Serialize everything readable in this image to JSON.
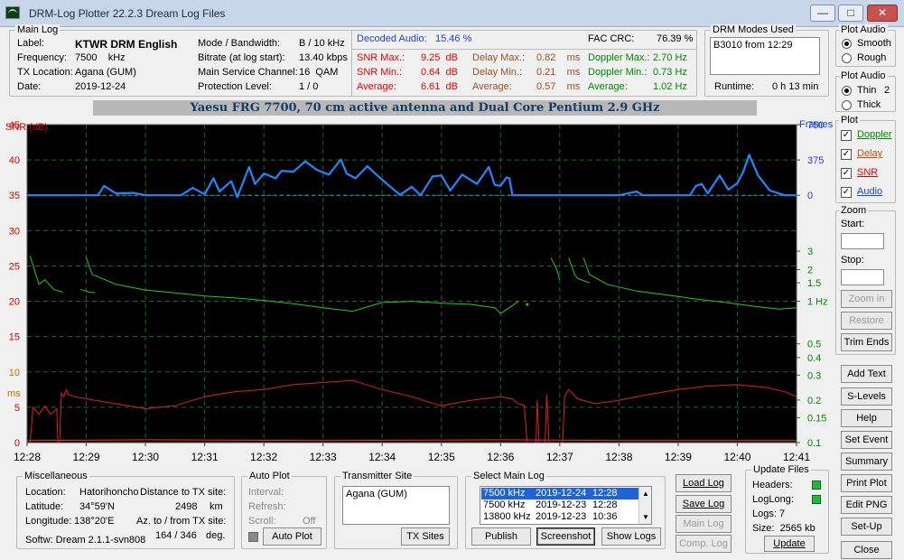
{
  "window": {
    "title": "DRM-Log Plotter 22.2.3   Dream Log Files",
    "min": "—",
    "max": "□",
    "close": "✕"
  },
  "main_log": {
    "title": "Main Log",
    "label_k": "Label:",
    "label_v": "KTWR DRM English",
    "freq_k": "Frequency:",
    "freq_v": "7500    kHz",
    "txloc_k": "TX Location:",
    "txloc_v": "Agana (GUM)",
    "date_k": "Date:",
    "date_v": "2019-12-24",
    "mode_k": "Mode / Bandwidth:",
    "mode_v": "B / 10 kHz",
    "bitrate_k": "Bitrate (at log start):",
    "bitrate_v": "13.40 kbps",
    "msc_k": "Main Service Channel:",
    "msc_v": "16  QAM",
    "prot_k": "Protection Level:",
    "prot_v": "1 / 0",
    "decoded_k": "Decoded Audio:",
    "decoded_v": "15.46 %",
    "fac_k": "FAC  CRC:",
    "fac_v": "76.39 %",
    "snrmax_k": "SNR Max.:",
    "snrmax_v": "9.25  dB",
    "snrmin_k": "SNR Min.:",
    "snrmin_v": "0.64  dB",
    "snravg_k": "Average:",
    "snravg_v": "6.61  dB",
    "dmax_k": "Delay Max.:",
    "dmax_v": "0.82    ms",
    "dmin_k": "Delay Min.:",
    "dmin_v": "0.21    ms",
    "davg_k": "Average:",
    "davg_v": "0.57    ms",
    "dopmax_k": "Doppler Max.:",
    "dopmax_v": "2.70 Hz",
    "dopmin_k": "Doppler Min.:",
    "dopmin_v": "0.73 Hz",
    "dopavg_k": "Average:",
    "dopavg_v": "1.02 Hz"
  },
  "drm_modes": {
    "title": "DRM Modes Used",
    "entry": "B3010 from 12:29",
    "runtime_k": "Runtime:",
    "runtime_v": "0 h 13 min"
  },
  "plot_audio1": {
    "title": "Plot Audio",
    "smooth": "Smooth",
    "rough": "Rough",
    "selected": "Smooth"
  },
  "plot_audio2": {
    "title": "Plot Audio",
    "thin": "Thin",
    "thick": "Thick",
    "value": "2",
    "selected": "Thin"
  },
  "plot_opts": {
    "title": "Plot",
    "doppler": "Doppler",
    "delay": "Delay",
    "snr": "SNR",
    "audio": "Audio",
    "check": "✓"
  },
  "zoom": {
    "title": "Zoom",
    "start": "Start:",
    "stop": "Stop:",
    "zoom_in": "Zoom in",
    "restore": "Restore",
    "trim": "Trim Ends"
  },
  "side_buttons": {
    "add_text": "Add Text",
    "s_levels": "S-Levels",
    "help": "Help",
    "set_event": "Set Event",
    "summary": "Summary",
    "print_plot": "Print Plot",
    "edit_png": "Edit PNG",
    "setup": "Set-Up",
    "close": "Close"
  },
  "chart_title": "Yaesu FRG 7700, 70 cm active antenna and Dual Core Pentium 2.9 GHz",
  "misc": {
    "title": "Miscellaneous",
    "loc_k": "Location:",
    "loc_v": "Hatorihoncho",
    "lat_k": "Latitude:",
    "lat_v": "34°59'N",
    "lon_k": "Longitude:",
    "lon_v": "138°20'E",
    "dist_k": "Distance to TX site:",
    "dist_v": "2498",
    "dist_u": "km",
    "az_k": "Az. to / from TX site:",
    "az_v": "164 / 346",
    "az_u": "deg.",
    "softw": "Softw: Dream 2.1.1-svn808"
  },
  "auto_plot": {
    "title": "Auto Plot",
    "interval": "Interval:",
    "refresh": "Refresh:",
    "scroll": "Scroll:",
    "scroll_v": "Off",
    "button": "Auto Plot"
  },
  "tx_site": {
    "title": "Transmitter Site",
    "entry": "Agana (GUM)",
    "button": "TX Sites"
  },
  "select_log": {
    "title": "Select Main Log",
    "rows": [
      [
        "7500 kHz",
        "2019-12-24",
        "12:28"
      ],
      [
        "7500 kHz",
        "2019-12-23",
        "12:28"
      ],
      [
        "13800 kHz",
        "2019-12-23",
        "10:36"
      ]
    ],
    "publish": "Publish",
    "screenshot": "Screenshot",
    "show_logs": "Show Logs"
  },
  "log_buttons": {
    "load": "Load Log",
    "save": "Save Log",
    "main": "Main Log",
    "comp": "Comp. Log"
  },
  "update_files": {
    "title": "Update Files",
    "headers": "Headers:",
    "loglong": "LogLong:",
    "logs": "Logs: 7",
    "size": "Size:  2565 kb",
    "update": "Update"
  },
  "chart_data": {
    "type": "line",
    "axis_left_title": "SNR (dB)",
    "axis_left_ms": "ms",
    "axis_right_title": "Frames",
    "snr_ticks": [
      "45",
      "40",
      "35",
      "30",
      "25",
      "20",
      "15",
      "10",
      "5",
      "0"
    ],
    "right_ticks": [
      "750",
      "375",
      "0",
      "3",
      "2",
      "1.5",
      "1 Hz",
      "0.5",
      "0.4",
      "0.3",
      "0.2",
      "0.15",
      "0.1"
    ],
    "x_ticks": [
      "12:28",
      "12:29",
      "12:30",
      "12:31",
      "12:32",
      "12:33",
      "12:34",
      "12:35",
      "12:36",
      "12:37",
      "12:38",
      "12:39",
      "12:40",
      "12:41"
    ],
    "colors": {
      "audio": "#1e88ff",
      "doppler": "#22cc22",
      "delay": "#e02020",
      "snr": "#ff3030",
      "grid": "#1d6b1d",
      "baseline": "#4a90e2",
      "bg": "#000000"
    },
    "x_range": [
      0,
      13
    ],
    "series": [
      {
        "name": "Audio",
        "unit": "frames",
        "values": [
          [
            0,
            0
          ],
          [
            1.2,
            0
          ],
          [
            1.3,
            100
          ],
          [
            1.5,
            20
          ],
          [
            1.8,
            25
          ],
          [
            2,
            0
          ],
          [
            2.6,
            0
          ],
          [
            2.8,
            80
          ],
          [
            3.0,
            10
          ],
          [
            3.15,
            180
          ],
          [
            3.25,
            40
          ],
          [
            3.45,
            150
          ],
          [
            3.55,
            -20
          ],
          [
            3.75,
            300
          ],
          [
            3.85,
            120
          ],
          [
            4.0,
            230
          ],
          [
            4.2,
            180
          ],
          [
            4.3,
            260
          ],
          [
            4.5,
            250
          ],
          [
            4.7,
            360
          ],
          [
            4.9,
            270
          ],
          [
            5.1,
            220
          ],
          [
            5.3,
            380
          ],
          [
            5.4,
            230
          ],
          [
            5.55,
            180
          ],
          [
            5.75,
            310
          ],
          [
            5.9,
            220
          ],
          [
            6.1,
            110
          ],
          [
            6.3,
            5
          ],
          [
            6.5,
            90
          ],
          [
            6.65,
            0
          ],
          [
            6.85,
            200
          ],
          [
            7.0,
            210
          ],
          [
            7.15,
            50
          ],
          [
            7.35,
            220
          ],
          [
            7.6,
            120
          ],
          [
            7.8,
            300
          ],
          [
            7.9,
            110
          ],
          [
            8.0,
            100
          ],
          [
            8.1,
            190
          ],
          [
            8.15,
            180
          ],
          [
            8.2,
            0
          ],
          [
            8.3,
            0
          ],
          [
            10.0,
            0
          ],
          [
            10.3,
            40
          ],
          [
            10.4,
            0
          ],
          [
            11.0,
            0
          ],
          [
            11.2,
            0
          ],
          [
            11.3,
            100
          ],
          [
            11.4,
            120
          ],
          [
            11.5,
            20
          ],
          [
            11.7,
            210
          ],
          [
            11.85,
            60
          ],
          [
            12.0,
            130
          ],
          [
            12.1,
            250
          ],
          [
            12.2,
            430
          ],
          [
            12.35,
            210
          ],
          [
            12.55,
            50
          ],
          [
            12.7,
            20
          ],
          [
            12.8,
            0
          ],
          [
            13,
            0
          ]
        ]
      },
      {
        "name": "Doppler",
        "unit": "Hz",
        "segments": [
          [
            [
              0.05,
              2.7
            ],
            [
              0.2,
              1.45
            ],
            [
              0.3,
              1.6
            ],
            [
              0.45,
              1.3
            ],
            [
              0.6,
              1.22
            ]
          ],
          [
            [
              0.9,
              1.3
            ],
            [
              1.05,
              1.22
            ],
            [
              1.15,
              1.2
            ]
          ],
          [
            [
              1.0,
              2.6
            ],
            [
              1.1,
              1.8
            ],
            [
              1.5,
              1.45
            ],
            [
              2.0,
              1.28
            ],
            [
              2.5,
              1.2
            ],
            [
              3.0,
              1.12
            ],
            [
              3.5,
              1.08
            ],
            [
              4.0,
              1.02
            ],
            [
              4.5,
              0.96
            ],
            [
              5.0,
              0.9
            ],
            [
              5.5,
              0.85
            ],
            [
              6.0,
              0.98
            ],
            [
              6.5,
              1.0
            ],
            [
              7.0,
              0.97
            ],
            [
              7.5,
              0.95
            ],
            [
              7.9,
              0.9
            ],
            [
              8.0,
              0.82
            ],
            [
              8.15,
              0.9
            ],
            [
              8.3,
              1.0
            ]
          ],
          [
            [
              8.45,
              0.95
            ]
          ],
          [
            [
              8.85,
              2.6
            ],
            [
              8.95,
              2.0
            ],
            [
              9.0,
              1.6
            ]
          ],
          [
            [
              9.15,
              2.6
            ],
            [
              9.25,
              1.8
            ],
            [
              9.3,
              1.65
            ],
            [
              9.5,
              1.5
            ]
          ],
          [
            [
              9.4,
              2.6
            ],
            [
              9.5,
              1.8
            ],
            [
              9.8,
              1.45
            ],
            [
              10.3,
              1.25
            ],
            [
              10.8,
              1.15
            ],
            [
              11.3,
              1.05
            ],
            [
              11.8,
              0.98
            ],
            [
              12.3,
              0.92
            ],
            [
              12.7,
              0.88
            ],
            [
              13,
              0.9
            ]
          ]
        ]
      },
      {
        "name": "Delay",
        "unit": "ms",
        "segments": [
          [
            [
              0.05,
              0
            ],
            [
              0.1,
              5
            ],
            [
              0.2,
              4
            ],
            [
              0.3,
              5.2
            ],
            [
              0.4,
              4.0
            ],
            [
              0.5,
              4.8
            ],
            [
              0.52,
              0
            ]
          ],
          [
            [
              0.55,
              0
            ],
            [
              0.58,
              7
            ],
            [
              0.62,
              6.5
            ],
            [
              0.66,
              7.5
            ],
            [
              0.7,
              6.8
            ],
            [
              0.8,
              6.5
            ],
            [
              1.0,
              6.2
            ],
            [
              1.5,
              5.5
            ],
            [
              2.0,
              4.8
            ],
            [
              2.5,
              5.2
            ],
            [
              3.0,
              6.5
            ],
            [
              3.5,
              7.2
            ],
            [
              4.0,
              7.5
            ],
            [
              4.5,
              8.2
            ],
            [
              5.0,
              8.5
            ],
            [
              5.5,
              8.8
            ],
            [
              6.0,
              7.5
            ],
            [
              6.5,
              6.5
            ],
            [
              7.0,
              5.2
            ],
            [
              7.5,
              6.0
            ],
            [
              8.0,
              6.5
            ],
            [
              8.2,
              6.2
            ],
            [
              8.3,
              5.5
            ],
            [
              8.4,
              5.3
            ],
            [
              8.45,
              0
            ]
          ],
          [
            [
              8.6,
              0
            ],
            [
              8.62,
              6.0
            ],
            [
              8.65,
              0
            ]
          ],
          [
            [
              8.75,
              0
            ],
            [
              8.78,
              6.8
            ],
            [
              8.82,
              0
            ]
          ],
          [
            [
              9.05,
              0
            ],
            [
              9.08,
              6.5
            ],
            [
              9.15,
              7.5
            ],
            [
              9.3,
              6.2
            ],
            [
              9.6,
              5.5
            ],
            [
              10.0,
              6.0
            ],
            [
              10.5,
              6.8
            ],
            [
              11.0,
              7.5
            ],
            [
              11.5,
              8.0
            ],
            [
              12.0,
              8.2
            ],
            [
              12.5,
              7.8
            ],
            [
              12.8,
              7.2
            ],
            [
              13,
              6.5
            ]
          ]
        ]
      },
      {
        "name": "SNR",
        "unit": "dB",
        "values": [
          [
            0,
            0.3
          ],
          [
            2,
            0.4
          ],
          [
            5,
            0.3
          ],
          [
            8,
            0.4
          ],
          [
            10,
            0.3
          ],
          [
            13,
            0.3
          ]
        ]
      }
    ]
  }
}
